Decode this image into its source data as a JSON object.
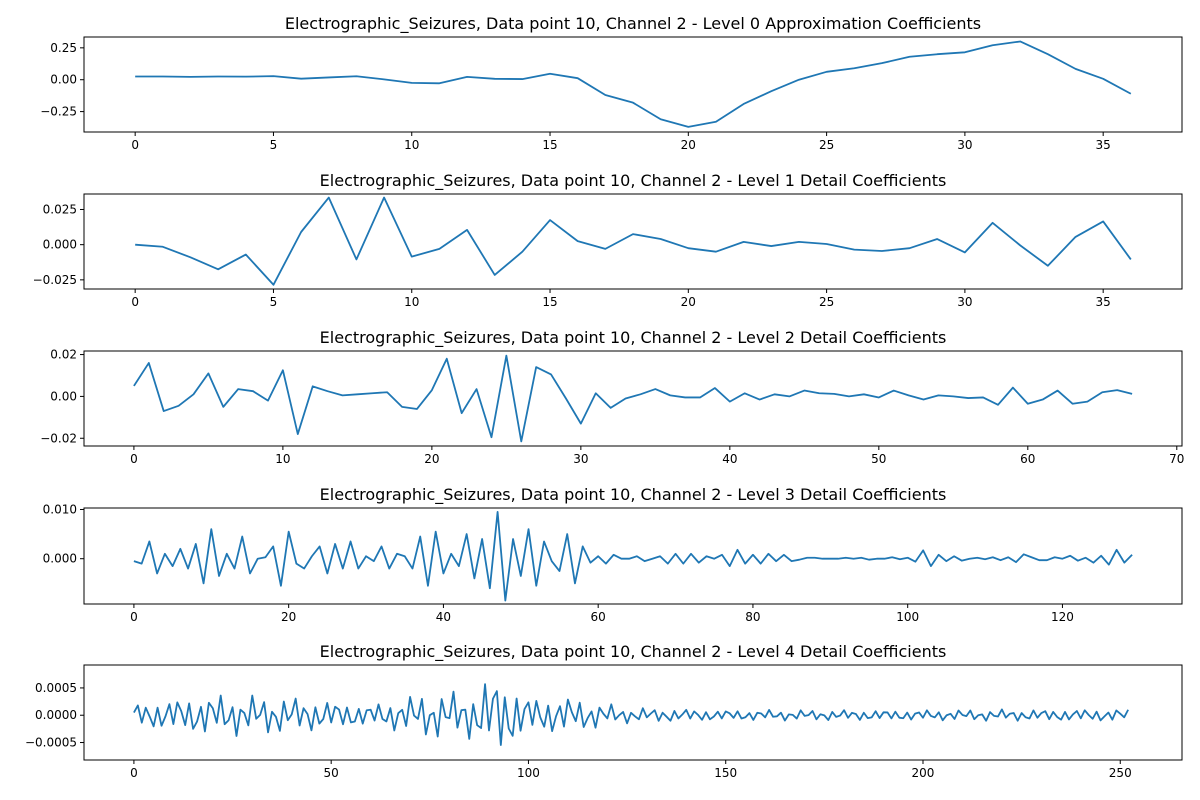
{
  "chart_data": [
    {
      "type": "line",
      "title": "Electrographic_Seizures, Data point 10, Channel 2 - Level 0 Approximation Coefficients",
      "xlabel": "",
      "ylabel": "",
      "xlim": [
        -1.85,
        37.85
      ],
      "ylim": [
        -0.41,
        0.335
      ],
      "xticks": [
        0,
        5,
        10,
        15,
        20,
        25,
        30,
        35
      ],
      "xtick_labels": [
        "0",
        "5",
        "10",
        "15",
        "20",
        "25",
        "30",
        "35"
      ],
      "yticks": [
        -0.25,
        0,
        0.25
      ],
      "ytick_labels": [
        "−0.25",
        "0.00",
        "0.25"
      ],
      "grid": false,
      "color": "#1f77b4",
      "series": [
        {
          "x0": 0,
          "dx": 1,
          "values": [
            0.025,
            0.025,
            0.022,
            0.025,
            0.024,
            0.028,
            0.008,
            0.018,
            0.027,
            0.003,
            -0.025,
            -0.028,
            0.022,
            0.007,
            0.005,
            0.047,
            0.012,
            -0.12,
            -0.18,
            -0.31,
            -0.37,
            -0.33,
            -0.19,
            -0.09,
            0.0,
            0.062,
            0.09,
            0.13,
            0.18,
            0.2,
            0.215,
            0.27,
            0.3,
            0.2,
            0.085,
            0.007,
            -0.11
          ]
        }
      ]
    },
    {
      "type": "line",
      "title": "Electrographic_Seizures, Data point 10, Channel 2 - Level 1 Detail Coefficients",
      "xlabel": "",
      "ylabel": "",
      "xlim": [
        -1.85,
        37.85
      ],
      "ylim": [
        -0.0315,
        0.036
      ],
      "xticks": [
        0,
        5,
        10,
        15,
        20,
        25,
        30,
        35
      ],
      "xtick_labels": [
        "0",
        "5",
        "10",
        "15",
        "20",
        "25",
        "30",
        "35"
      ],
      "yticks": [
        -0.025,
        0,
        0.025
      ],
      "ytick_labels": [
        "−0.025",
        "0.000",
        "0.025"
      ],
      "grid": false,
      "color": "#1f77b4",
      "series": [
        {
          "x0": 0,
          "dx": 1,
          "values": [
            0.0,
            -0.0015,
            -0.009,
            -0.0175,
            -0.007,
            -0.0285,
            0.009,
            0.0335,
            -0.0105,
            0.0335,
            -0.0085,
            -0.003,
            0.0105,
            -0.0215,
            -0.005,
            0.0175,
            0.0025,
            -0.003,
            0.0075,
            0.004,
            -0.0025,
            -0.005,
            0.002,
            -0.001,
            0.002,
            0.0005,
            -0.0035,
            -0.0045,
            -0.0025,
            0.004,
            -0.0055,
            0.0155,
            -0.0005,
            -0.015,
            0.0055,
            0.0165,
            -0.0105
          ]
        }
      ]
    },
    {
      "type": "line",
      "title": "Electrographic_Seizures, Data point 10, Channel 2 - Level 2 Detail Coefficients",
      "xlabel": "",
      "ylabel": "",
      "xlim": [
        -3.35,
        70.35
      ],
      "ylim": [
        -0.0237,
        0.0217
      ],
      "xticks": [
        0,
        10,
        20,
        30,
        40,
        50,
        60,
        70
      ],
      "xtick_labels": [
        "0",
        "10",
        "20",
        "30",
        "40",
        "50",
        "60",
        "70"
      ],
      "yticks": [
        -0.02,
        0,
        0.02
      ],
      "ytick_labels": [
        "−0.02",
        "0.00",
        "0.02"
      ],
      "grid": false,
      "color": "#1f77b4",
      "series": [
        {
          "x0": 0,
          "dx": 1,
          "values": [
            0.005,
            0.016,
            -0.007,
            -0.0045,
            0.001,
            0.011,
            -0.005,
            0.0035,
            0.0025,
            -0.002,
            0.0125,
            -0.018,
            0.0048,
            0.0025,
            0.0005,
            0.001,
            0.0015,
            0.002,
            -0.005,
            -0.006,
            0.003,
            0.018,
            -0.008,
            0.0035,
            -0.0195,
            0.0195,
            -0.0215,
            0.014,
            0.0105,
            -0.001,
            -0.013,
            0.0015,
            -0.0055,
            -0.001,
            0.001,
            0.0035,
            0.0005,
            -0.0005,
            -0.0005,
            0.004,
            -0.0025,
            0.0015,
            -0.0015,
            0.001,
            0.0,
            0.0028,
            0.0015,
            0.0012,
            0.0,
            0.001,
            -0.0005,
            0.0028,
            0.0005,
            -0.0015,
            0.0005,
            0.0,
            -0.0008,
            -0.0005,
            -0.004,
            0.0042,
            -0.0035,
            -0.0015,
            0.0028,
            -0.0035,
            -0.0025,
            0.002,
            0.003,
            0.0012
          ]
        }
      ]
    },
    {
      "type": "line",
      "title": "Electrographic_Seizures, Data point 10, Channel 2 - Level 3 Detail Coefficients",
      "xlabel": "",
      "ylabel": "",
      "xlim": [
        -6.45,
        135.45
      ],
      "ylim": [
        -0.0092,
        0.0103
      ],
      "xticks": [
        0,
        20,
        40,
        60,
        80,
        100,
        120
      ],
      "xtick_labels": [
        "0",
        "20",
        "40",
        "60",
        "80",
        "100",
        "120"
      ],
      "yticks": [
        0,
        0.01
      ],
      "ytick_labels": [
        "0.000",
        "0.010"
      ],
      "grid": false,
      "color": "#1f77b4",
      "series": [
        {
          "x0": 0,
          "dx": 1,
          "values": [
            -0.0005,
            -0.001,
            0.0035,
            -0.003,
            0.001,
            -0.0015,
            0.002,
            -0.002,
            0.003,
            -0.005,
            0.006,
            -0.0035,
            0.001,
            -0.002,
            0.0045,
            -0.003,
            0.0,
            0.0003,
            0.0025,
            -0.0055,
            0.0055,
            -0.001,
            -0.002,
            0.0005,
            0.0025,
            -0.003,
            0.003,
            -0.002,
            0.0035,
            -0.002,
            0.0005,
            -0.0005,
            0.0025,
            -0.002,
            0.001,
            0.0005,
            -0.002,
            0.0045,
            -0.0055,
            0.0055,
            -0.003,
            0.001,
            -0.0015,
            0.005,
            -0.004,
            0.004,
            -0.006,
            0.0095,
            -0.0085,
            0.004,
            -0.0035,
            0.006,
            -0.0055,
            0.0035,
            -0.0005,
            -0.0025,
            0.005,
            -0.005,
            0.0025,
            -0.0008,
            0.0005,
            -0.001,
            0.0008,
            0.0,
            0.0,
            0.0005,
            -0.0005,
            0.0,
            0.0005,
            -0.001,
            0.001,
            -0.001,
            0.001,
            -0.0008,
            0.0005,
            0.0,
            0.0008,
            -0.0015,
            0.0018,
            -0.001,
            0.0008,
            -0.001,
            0.001,
            -0.0005,
            0.0008,
            -0.0005,
            -0.0002,
            0.0002,
            0.0002,
            0.0,
            0.0,
            0.0,
            0.0002,
            0.0,
            0.0002,
            -0.0002,
            0.0,
            0.0,
            0.0003,
            -0.0001,
            0.0002,
            -0.0006,
            0.0017,
            -0.0015,
            0.0008,
            -0.0005,
            0.0005,
            -0.0004,
            0.0,
            0.0002,
            -0.0001,
            0.0003,
            -0.0003,
            0.0003,
            -0.0007,
            0.0009,
            0.0003,
            -0.0003,
            -0.0003,
            0.0003,
            0.0,
            0.0006,
            -0.0004,
            0.0002,
            -0.0008,
            0.0006,
            -0.0012,
            0.0018,
            -0.0008,
            0.0008
          ]
        }
      ]
    },
    {
      "type": "line",
      "title": "Electrographic_Seizures, Data point 10, Channel 2 - Level 4 Detail Coefficients",
      "xlabel": "",
      "ylabel": "",
      "xlim": [
        -12.65,
        265.65
      ],
      "ylim": [
        -0.00082,
        0.00092
      ],
      "xticks": [
        0,
        50,
        100,
        150,
        200,
        250
      ],
      "xtick_labels": [
        "0",
        "50",
        "100",
        "150",
        "200",
        "250"
      ],
      "yticks": [
        -0.0005,
        0,
        0.0005
      ],
      "ytick_labels": [
        "−0.0005",
        "0.0000",
        "0.0005"
      ],
      "grid": false,
      "color": "#1f77b4",
      "envelope_description_note": null,
      "series": [
        {
          "x0": 0,
          "dx": 1,
          "count": 253,
          "envelope": {
            "index": [
              0,
              20,
              40,
              60,
              75,
              85,
              92,
              100,
              110,
              125,
              150,
              200,
              252
            ],
            "amplitude": [
              0.00022,
              0.0004,
              0.00035,
              0.0002,
              0.00045,
              0.00045,
              0.0008,
              0.00035,
              0.00035,
              0.00015,
              0.0001,
              0.0001,
              0.00012
            ]
          }
        }
      ]
    }
  ]
}
